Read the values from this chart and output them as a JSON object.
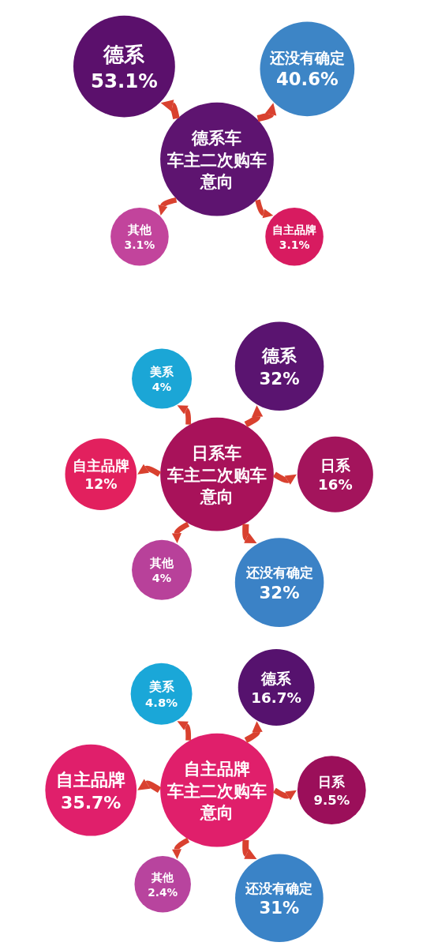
{
  "chart_data": [
    {
      "type": "other",
      "title": "德系车",
      "subtitle": "车主二次购车意向",
      "color": "#5e1470",
      "categories": [
        "德系",
        "还没有确定",
        "自主品牌",
        "其他"
      ],
      "values": [
        53.1,
        40.6,
        3.1,
        3.1
      ],
      "value_labels": [
        "53.1%",
        "40.6%",
        "3.1%",
        "3.1%"
      ],
      "colors": [
        "#5b106c",
        "#3d85c6",
        "#d81b60",
        "#c2449c"
      ]
    },
    {
      "type": "other",
      "title": "日系车",
      "subtitle": "车主二次购车意向",
      "color": "#a8125a",
      "categories": [
        "美系",
        "德系",
        "日系",
        "还没有确定",
        "其他",
        "自主品牌"
      ],
      "values": [
        4,
        32,
        16,
        32,
        4,
        12
      ],
      "value_labels": [
        "4%",
        "32%",
        "16%",
        "32%",
        "4%",
        "12%"
      ],
      "colors": [
        "#1ba6d6",
        "#5a1470",
        "#a3145c",
        "#3b82c6",
        "#b8419a",
        "#e2205e"
      ]
    },
    {
      "type": "other",
      "title": "自主品牌",
      "subtitle": "车主二次购车意向",
      "color": "#e01f6b",
      "categories": [
        "美系",
        "德系",
        "日系",
        "还没有确定",
        "其他",
        "自主品牌"
      ],
      "values": [
        4.8,
        16.7,
        9.5,
        31,
        2.4,
        35.7
      ],
      "value_labels": [
        "4.8%",
        "16.7%",
        "9.5%",
        "31%",
        "2.4%",
        "35.7%"
      ],
      "colors": [
        "#1aa7d8",
        "#56126e",
        "#9b0f5a",
        "#3a83c7",
        "#b8449e",
        "#e01f6b"
      ]
    }
  ]
}
